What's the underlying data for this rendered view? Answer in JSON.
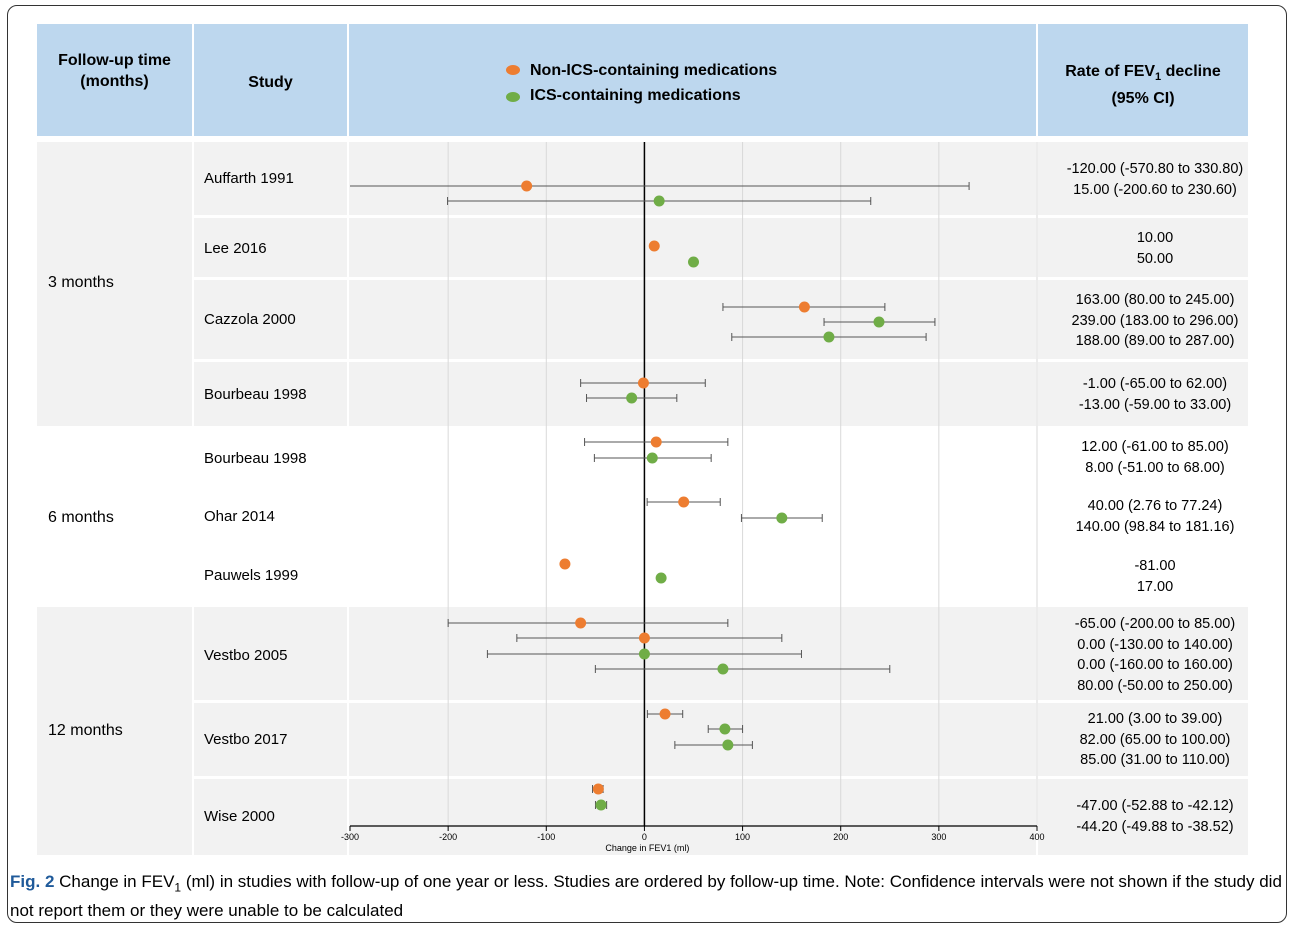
{
  "header": {
    "followup": [
      "Follow-up time",
      "(months)"
    ],
    "study": "Study",
    "rate": [
      "Rate of FEV",
      "1",
      " decline",
      "(95% CI)"
    ]
  },
  "legend": [
    {
      "label": "Non-ICS-containing medications",
      "color": "#ed7d31"
    },
    {
      "label": "ICS-containing medications",
      "color": "#70ad47"
    }
  ],
  "groups": [
    {
      "label": "3 months"
    },
    {
      "label": "6 months"
    },
    {
      "label": "12 months"
    }
  ],
  "studies": [
    {
      "name": "Auffarth 1991",
      "rates": [
        "-120.00 (-570.80 to 330.80)",
        "15.00 (-200.60 to 230.60)"
      ]
    },
    {
      "name": "Lee 2016",
      "rates": [
        "10.00",
        "50.00"
      ]
    },
    {
      "name": "Cazzola 2000",
      "rates": [
        "163.00 (80.00 to 245.00)",
        "239.00 (183.00 to 296.00)",
        "188.00 (89.00 to 287.00)"
      ]
    },
    {
      "name": "Bourbeau 1998",
      "rates": [
        "-1.00 (-65.00 to 62.00)",
        "-13.00 (-59.00 to 33.00)"
      ]
    },
    {
      "name": "Bourbeau 1998",
      "rates": [
        "12.00 (-61.00 to 85.00)",
        "8.00 (-51.00 to 68.00)"
      ]
    },
    {
      "name": "Ohar 2014",
      "rates": [
        "40.00 (2.76 to 77.24)",
        "140.00 (98.84 to 181.16)"
      ]
    },
    {
      "name": "Pauwels 1999",
      "rates": [
        "-81.00",
        "17.00"
      ]
    },
    {
      "name": "Vestbo 2005",
      "rates": [
        "-65.00 (-200.00 to 85.00)",
        "0.00 (-130.00 to 140.00)",
        "0.00 (-160.00 to 160.00)",
        "80.00 (-50.00 to 250.00)"
      ]
    },
    {
      "name": "Vestbo 2017",
      "rates": [
        "21.00 (3.00 to 39.00)",
        "82.00 (65.00 to 100.00)",
        "85.00 (31.00 to 110.00)"
      ]
    },
    {
      "name": "Wise 2000",
      "rates": [
        "-47.00 (-52.88 to -42.12)",
        "-44.20 (-49.88 to -38.52)"
      ]
    }
  ],
  "chart_data": {
    "type": "scatter",
    "xlabel": "Change in FEV1 (ml)",
    "xlim": [
      -300,
      400
    ],
    "xticks": [
      "-300",
      "-200",
      "-100",
      "0",
      "100",
      "200",
      "300",
      "400"
    ],
    "points": [
      {
        "study": 0,
        "series": 0,
        "value": -120,
        "low": -570.8,
        "high": 330.8
      },
      {
        "study": 0,
        "series": 1,
        "value": 15,
        "low": -200.6,
        "high": 230.6
      },
      {
        "study": 1,
        "series": 0,
        "value": 10
      },
      {
        "study": 1,
        "series": 1,
        "value": 50
      },
      {
        "study": 2,
        "series": 0,
        "value": 163,
        "low": 80,
        "high": 245
      },
      {
        "study": 2,
        "series": 1,
        "value": 239,
        "low": 183,
        "high": 296
      },
      {
        "study": 2,
        "series": 1,
        "value": 188,
        "low": 89,
        "high": 287
      },
      {
        "study": 3,
        "series": 0,
        "value": -1,
        "low": -65,
        "high": 62
      },
      {
        "study": 3,
        "series": 1,
        "value": -13,
        "low": -59,
        "high": 33
      },
      {
        "study": 4,
        "series": 0,
        "value": 12,
        "low": -61,
        "high": 85
      },
      {
        "study": 4,
        "series": 1,
        "value": 8,
        "low": -51,
        "high": 68
      },
      {
        "study": 5,
        "series": 0,
        "value": 40,
        "low": 2.76,
        "high": 77.24
      },
      {
        "study": 5,
        "series": 1,
        "value": 140,
        "low": 98.84,
        "high": 181.16
      },
      {
        "study": 6,
        "series": 0,
        "value": -81
      },
      {
        "study": 6,
        "series": 1,
        "value": 17
      },
      {
        "study": 7,
        "series": 0,
        "value": -65,
        "low": -200,
        "high": 85
      },
      {
        "study": 7,
        "series": 0,
        "value": 0,
        "low": -130,
        "high": 140
      },
      {
        "study": 7,
        "series": 1,
        "value": 0,
        "low": -160,
        "high": 160
      },
      {
        "study": 7,
        "series": 1,
        "value": 80,
        "low": -50,
        "high": 250
      },
      {
        "study": 8,
        "series": 0,
        "value": 21,
        "low": 3,
        "high": 39
      },
      {
        "study": 8,
        "series": 1,
        "value": 82,
        "low": 65,
        "high": 100
      },
      {
        "study": 8,
        "series": 1,
        "value": 85,
        "low": 31,
        "high": 110
      },
      {
        "study": 9,
        "series": 0,
        "value": -47,
        "low": -52.88,
        "high": -42.12
      },
      {
        "study": 9,
        "series": 1,
        "value": -44.2,
        "low": -49.88,
        "high": -38.52
      }
    ]
  },
  "caption": {
    "prefix": "Fig. 2",
    "text1": " Change in FEV",
    "sub": "1",
    "text2": " (ml) in studies with follow-up of one year or less. Studies are ordered by follow-up time. Note: Confidence intervals were not shown if the study did not report them or they were unable to be calculated"
  }
}
